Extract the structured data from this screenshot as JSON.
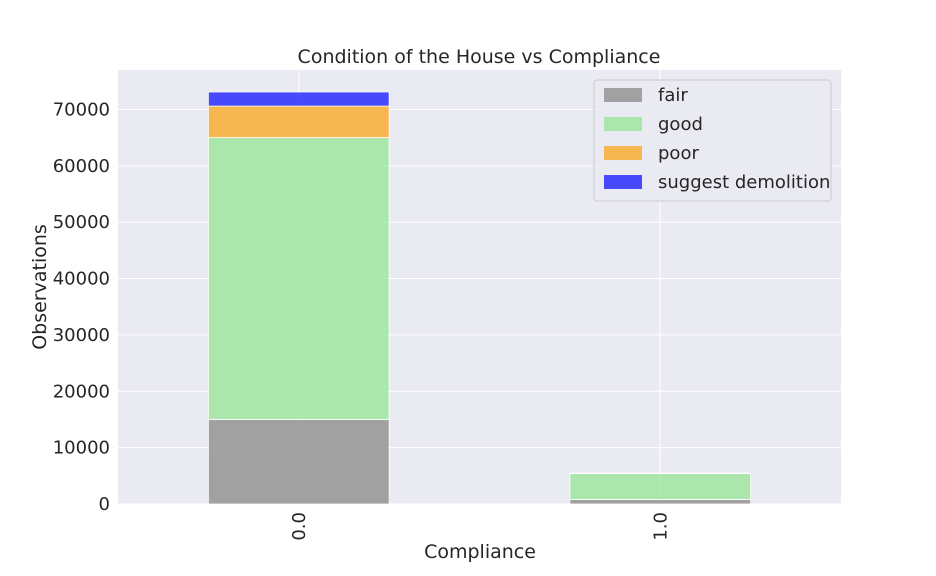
{
  "chart_data": {
    "type": "bar",
    "stacked": true,
    "title": "Condition of the House vs Compliance",
    "xlabel": "Compliance",
    "ylabel": "Observations",
    "categories": [
      "0.0",
      "1.0"
    ],
    "ylim": [
      0,
      77000
    ],
    "yticks": [
      0,
      10000,
      20000,
      30000,
      40000,
      50000,
      60000,
      70000
    ],
    "grid": true,
    "legend_position": "top-right",
    "series": [
      {
        "name": "fair",
        "color": "#8c8c8c",
        "values": [
          15000,
          800
        ]
      },
      {
        "name": "good",
        "color": "#98e69a",
        "values": [
          50000,
          4600
        ]
      },
      {
        "name": "poor",
        "color": "#f8a823",
        "values": [
          5600,
          50
        ]
      },
      {
        "name": "suggest demolition",
        "color": "#1a1aff",
        "values": [
          2500,
          20
        ]
      }
    ]
  }
}
